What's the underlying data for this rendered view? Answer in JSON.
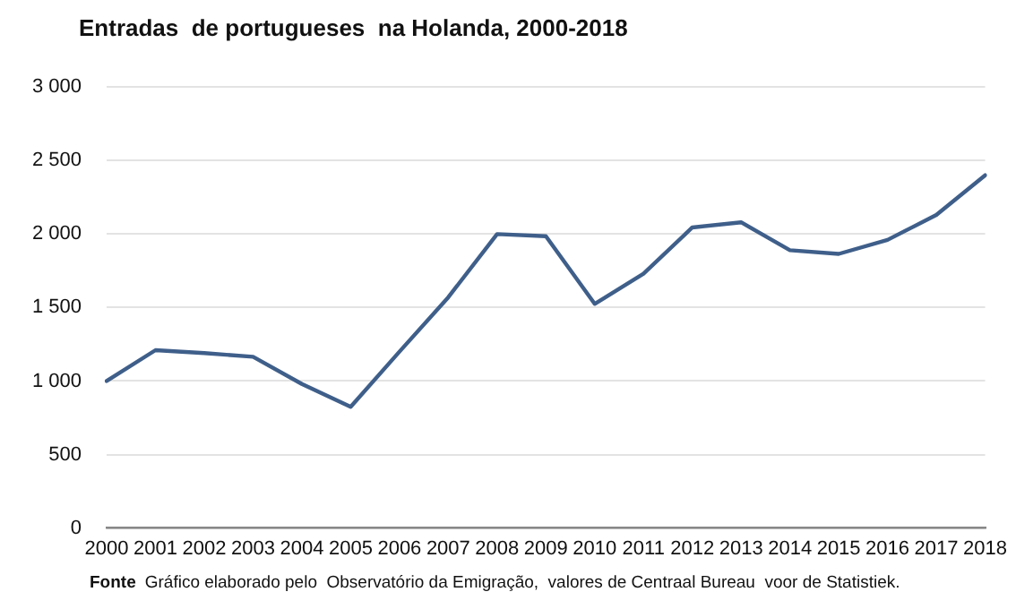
{
  "chart_data": {
    "type": "line",
    "title": "Entradas  de portugueses  na Holanda, 2000-2018",
    "categories": [
      "2000",
      "2001",
      "2002",
      "2003",
      "2004",
      "2005",
      "2006",
      "2007",
      "2008",
      "2009",
      "2010",
      "2011",
      "2012",
      "2013",
      "2014",
      "2015",
      "2016",
      "2017",
      "2018"
    ],
    "series": [
      {
        "color": "#3f5f8a",
        "values": [
          1000,
          1210,
          1190,
          1165,
          980,
          825,
          1200,
          1570,
          2000,
          1985,
          1525,
          1730,
          2045,
          2080,
          1890,
          1865,
          1960,
          2130,
          2400
        ]
      }
    ],
    "ylim": [
      0,
      3000
    ],
    "yticks": [
      0,
      {
        "value": 500,
        "label": "500"
      },
      {
        "value": 1000,
        "label": "1 000"
      },
      {
        "value": 1500,
        "label": "1 500"
      },
      {
        "value": 2000,
        "label": "2 000"
      },
      {
        "value": 2500,
        "label": "2 500"
      },
      {
        "value": 3000,
        "label": "3 000"
      }
    ],
    "grid": "y",
    "legend": false,
    "marker": "none",
    "line_style": "solid",
    "annotations": [
      "Fonte",
      "Gráfico elaborado pelo  Observatório da Emigração,  valores de Centraal Bureau  voor de Statistiek."
    ]
  }
}
